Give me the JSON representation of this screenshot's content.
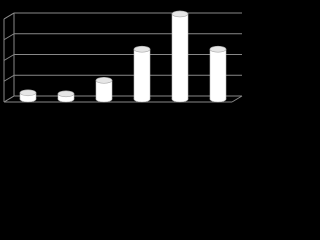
{
  "chart_data": {
    "type": "bar3d",
    "categories": [
      null,
      null,
      null,
      null,
      null,
      null
    ],
    "values": [
      0.3,
      0.25,
      0.9,
      2.4,
      4.1,
      2.4
    ],
    "color": "#ffffff",
    "ylim": [
      0,
      4
    ],
    "yticks": [
      0,
      1,
      2,
      3,
      4
    ],
    "grid": true
  }
}
